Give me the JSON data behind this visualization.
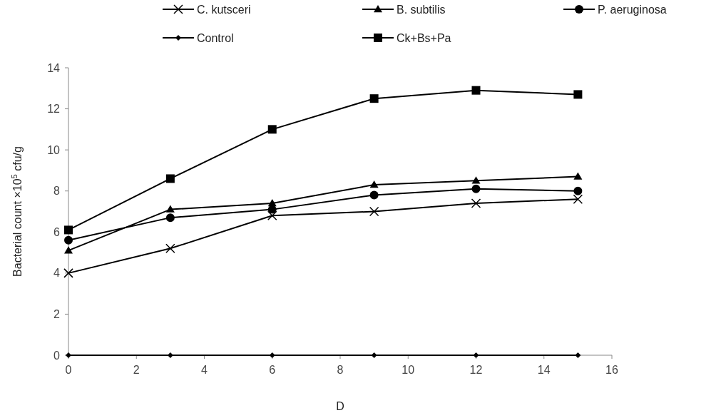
{
  "chart_data": {
    "type": "line",
    "xlabel": "D",
    "ylabel": "Bacterial count ×10$^{5}$ cfu/g",
    "x": [
      0,
      3,
      6,
      9,
      12,
      15
    ],
    "xlim": [
      0,
      16
    ],
    "xticks": [
      0,
      2,
      4,
      6,
      8,
      10,
      12,
      14,
      16
    ],
    "ylim": [
      0,
      14
    ],
    "yticks": [
      0,
      2,
      4,
      6,
      8,
      10,
      12,
      14
    ],
    "grid": false,
    "legend": "top",
    "line_style": "solid",
    "series": [
      {
        "name": "C. kutsceri",
        "color": "#000000",
        "marker": "cross",
        "values": [
          4.0,
          5.2,
          6.8,
          7.0,
          7.4,
          7.6
        ]
      },
      {
        "name": "B. subtilis",
        "color": "#000000",
        "marker": "triangle",
        "values": [
          5.1,
          7.1,
          7.4,
          8.3,
          8.5,
          8.7
        ]
      },
      {
        "name": "P. aeruginosa",
        "color": "#000000",
        "marker": "circle",
        "values": [
          5.6,
          6.7,
          7.1,
          7.8,
          8.1,
          8.0
        ]
      },
      {
        "name": "Control",
        "color": "#000000",
        "marker": "diamond",
        "values": [
          0,
          0,
          0,
          0,
          0,
          0
        ]
      },
      {
        "name": "Ck+Bs+Pa",
        "color": "#000000",
        "marker": "square",
        "values": [
          6.1,
          8.6,
          11.0,
          12.5,
          12.9,
          12.7
        ]
      }
    ]
  }
}
